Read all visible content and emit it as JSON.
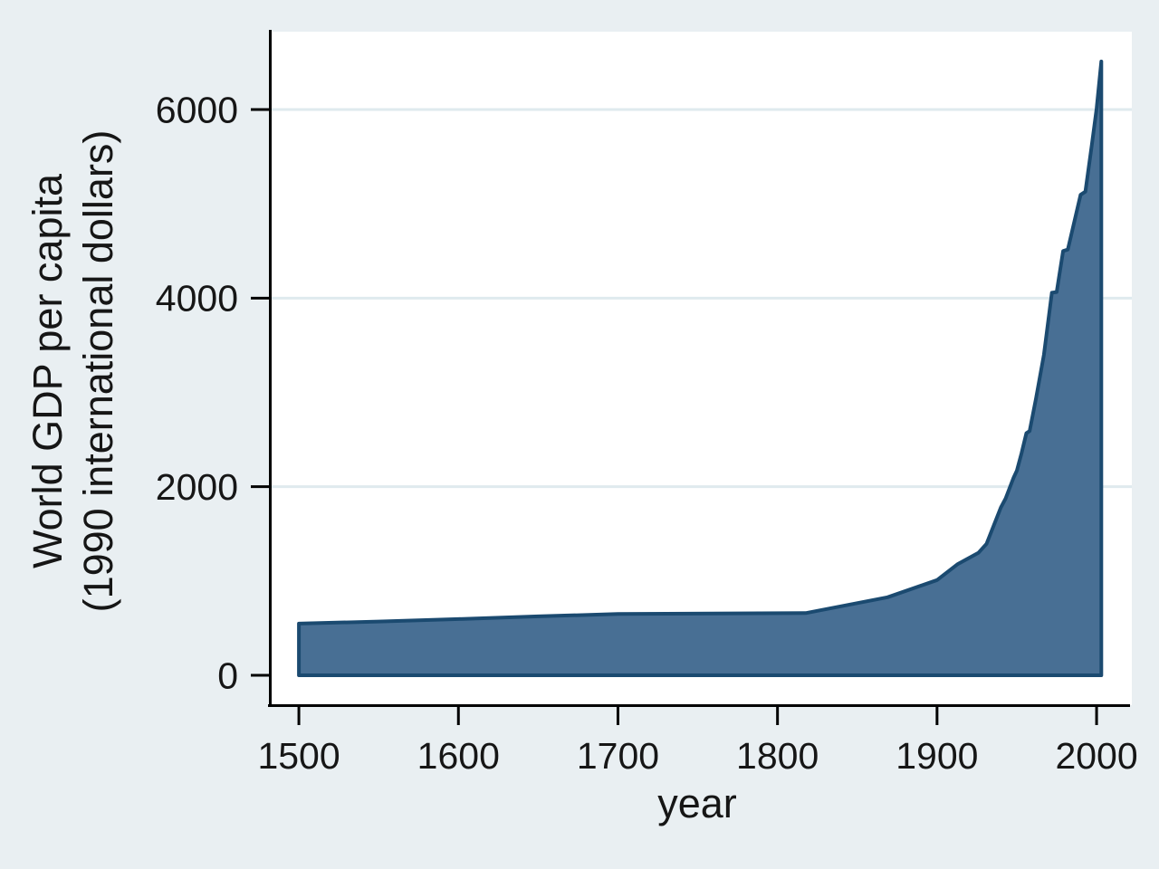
{
  "figure": {
    "background_color": "#e9eff2",
    "plot_background_color": "#ffffff",
    "gridline_color": "#dfeaee",
    "axis_color": "#000000",
    "text_color": "#161616",
    "area_fill_color": "#486f94",
    "area_border_color": "#1b4a70"
  },
  "chart_data": {
    "type": "area",
    "title": "",
    "xlabel": "year",
    "ylabel_line1": "World GDP per capita",
    "ylabel_line2": "(1990 international dollars)",
    "x": [
      1500,
      1550,
      1600,
      1650,
      1700,
      1760,
      1818,
      1869,
      1900,
      1913,
      1926,
      1931,
      1940,
      1943,
      1948,
      1950,
      1953,
      1956,
      1958,
      1962,
      1967,
      1972,
      1975,
      1979,
      1982,
      1990,
      1993,
      1997,
      2000,
      2003
    ],
    "series": [
      {
        "name": "World GDP per capita",
        "values": [
          548,
          570,
          596,
          625,
          650,
          655,
          660,
          827,
          1010,
          1180,
          1300,
          1394,
          1779,
          1875,
          2096,
          2170,
          2356,
          2567,
          2590,
          2933,
          3400,
          4058,
          4065,
          4500,
          4515,
          5096,
          5130,
          5625,
          6010,
          6510
        ]
      }
    ],
    "baseline": 0,
    "xticks": [
      1500,
      1600,
      1700,
      1800,
      1900,
      2000
    ],
    "yticks": [
      0,
      2000,
      4000,
      6000
    ],
    "xlim": [
      1481.8,
      2022.1
    ],
    "ylim": [
      -317,
      6826
    ],
    "grid": "horizontal-only",
    "legend_position": "none"
  }
}
